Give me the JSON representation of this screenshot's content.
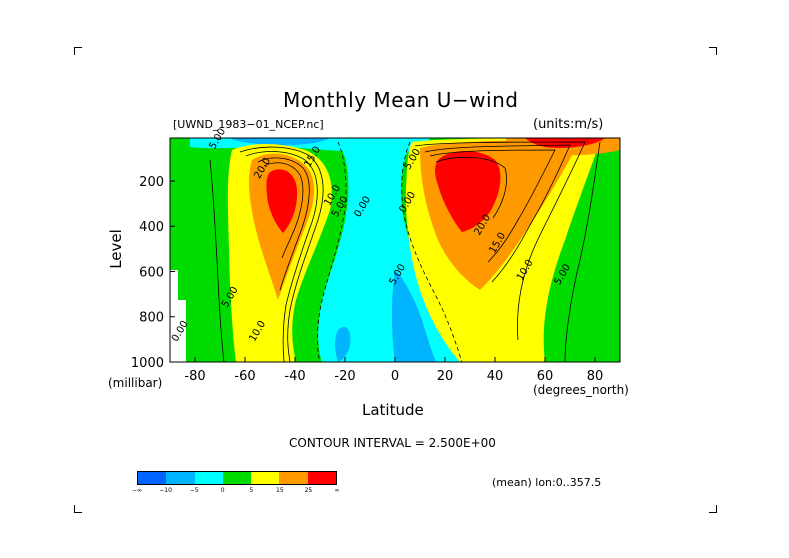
{
  "page": {
    "title": "Monthly Mean U−wind",
    "dataset": "[UWND_1983−01_NCEP.nc]",
    "units": "(units:m/s)",
    "contour_interval": "CONTOUR INTERVAL = 2.500E+00",
    "region_note": "(mean) lon:0..357.5"
  },
  "chart_data": {
    "type": "contour",
    "title": "Monthly Mean U−wind",
    "xlabel": "Latitude",
    "x_unit": "(degrees_north)",
    "ylabel": "Level",
    "y_unit": "(millibar)",
    "xlim": [
      -90,
      90
    ],
    "ylim": [
      1000,
      10
    ],
    "x_ticks": [
      {
        "value": -80,
        "label": "-80"
      },
      {
        "value": -60,
        "label": "-60"
      },
      {
        "value": -40,
        "label": "-40"
      },
      {
        "value": -20,
        "label": "-20"
      },
      {
        "value": 0,
        "label": "0"
      },
      {
        "value": 20,
        "label": "20"
      },
      {
        "value": 40,
        "label": "40"
      },
      {
        "value": 60,
        "label": "60"
      },
      {
        "value": 80,
        "label": "80"
      }
    ],
    "y_ticks": [
      {
        "value": 200,
        "label": "200"
      },
      {
        "value": 400,
        "label": "400"
      },
      {
        "value": 600,
        "label": "600"
      },
      {
        "value": 800,
        "label": "800"
      },
      {
        "value": 1000,
        "label": "1000"
      }
    ],
    "contour_interval": 2.5,
    "jets": [
      {
        "name": "southern_jet",
        "lat": -45,
        "level": 250,
        "peak": 27
      },
      {
        "name": "northern_jet",
        "lat": 30,
        "level": 200,
        "peak": 30
      }
    ],
    "contour_labels": [
      {
        "text": "5.00",
        "lat": -70,
        "level": 20
      },
      {
        "text": "15.0",
        "lat": -32,
        "level": 100
      },
      {
        "text": "20.0",
        "lat": -52,
        "level": 150
      },
      {
        "text": "10.0",
        "lat": -24,
        "level": 270
      },
      {
        "text": "5.00",
        "lat": -21,
        "level": 320
      },
      {
        "text": "0.00",
        "lat": -12,
        "level": 320
      },
      {
        "text": "0.00",
        "lat": 6,
        "level": 300
      },
      {
        "text": "5.00",
        "lat": 8,
        "level": 110
      },
      {
        "text": "5.00",
        "lat": 2,
        "level": 620
      },
      {
        "text": "20.0",
        "lat": 36,
        "level": 400
      },
      {
        "text": "15.0",
        "lat": 42,
        "level": 480
      },
      {
        "text": "10.0",
        "lat": 53,
        "level": 600
      },
      {
        "text": "5.00",
        "lat": 68,
        "level": 620
      },
      {
        "text": "0.00",
        "lat": -85,
        "level": 870
      },
      {
        "text": "5.00",
        "lat": -65,
        "level": 720
      },
      {
        "text": "10.0",
        "lat": -54,
        "level": 870
      }
    ],
    "colorbar": {
      "colors": [
        "#0064ff",
        "#00b4ff",
        "#00ffff",
        "#00dc00",
        "#ffff00",
        "#ff9900",
        "#ff0000"
      ],
      "tick_labels": [
        "−∞",
        "−10",
        "−5",
        "0",
        "5",
        "15",
        "25",
        "∞"
      ]
    }
  }
}
